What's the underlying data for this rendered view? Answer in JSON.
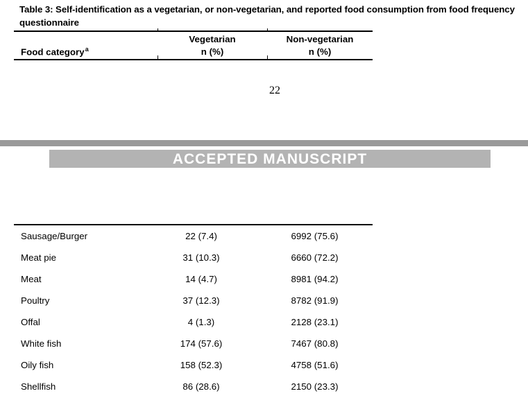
{
  "caption": "Table 3: Self-identification as a vegetarian, or non-vegetarian, and reported food consumption from food frequency questionnaire",
  "page_number": "22",
  "banner": {
    "text": "ACCEPTED MANUSCRIPT",
    "bg_color": "#b3b3b3",
    "text_color": "#ffffff"
  },
  "separator_bar_color": "#9a9a9a",
  "table": {
    "header": {
      "food_category_label": "Food category",
      "food_category_note": "a",
      "columns": [
        {
          "label": "Vegetarian",
          "sub": "n (%)"
        },
        {
          "label": "Non-vegetarian",
          "sub": "n (%)"
        }
      ]
    },
    "rows": [
      {
        "category": "Sausage/Burger",
        "vegetarian": "22 (7.4)",
        "non_vegetarian": "6992 (75.6)"
      },
      {
        "category": "Meat pie",
        "vegetarian": "31 (10.3)",
        "non_vegetarian": "6660 (72.2)"
      },
      {
        "category": "Meat",
        "vegetarian": "14 (4.7)",
        "non_vegetarian": "8981 (94.2)"
      },
      {
        "category": "Poultry",
        "vegetarian": "37 (12.3)",
        "non_vegetarian": "8782 (91.9)"
      },
      {
        "category": "Offal",
        "vegetarian": "4 (1.3)",
        "non_vegetarian": "2128 (23.1)"
      },
      {
        "category": "White fish",
        "vegetarian": "174 (57.6)",
        "non_vegetarian": "7467 (80.8)"
      },
      {
        "category": "Oily fish",
        "vegetarian": "158 (52.3)",
        "non_vegetarian": "4758 (51.6)"
      },
      {
        "category": "Shellfish",
        "vegetarian": "86 (28.6)",
        "non_vegetarian": "2150 (23.3)"
      }
    ]
  }
}
